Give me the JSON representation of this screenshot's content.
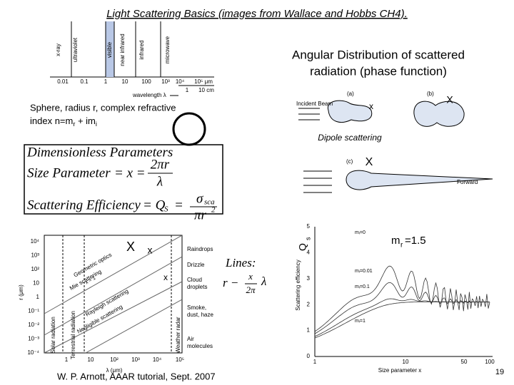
{
  "header": {
    "title": "Light Scattering Basics (images from Wallace and Hobbs CH4)."
  },
  "spectrum": {
    "bands": [
      "x-ray",
      "ultraviolet",
      "visible",
      "near infrared",
      "infrared",
      "microwave"
    ],
    "um_ticks": [
      "0.01",
      "0.1",
      "1",
      "10",
      "100",
      "10³",
      "10⁴",
      "10⁵ μm"
    ],
    "cm_ticks": [
      "1",
      "10 cm"
    ],
    "axis_label": "wavelength λ"
  },
  "phase": {
    "heading": [
      "Angular Distribution of scattered",
      "radiation (phase function)"
    ],
    "panel_a": "(a)",
    "panel_b": "(b)",
    "panel_c": "(c)",
    "incident": "Incident Beam",
    "forward": "Forward",
    "dipole": "Dipole scattering",
    "markers": [
      "x",
      "X",
      "X"
    ]
  },
  "sphere": {
    "line1": "Sphere, radius r, complex refractive",
    "prefix": "index n=m",
    "r": "r",
    "plus": " + im",
    "i": "i"
  },
  "equations": {
    "heading": "Dimensionless Parameters",
    "size_label": "Size Parameter",
    "size_eq": "= x =",
    "size_num": "2πr",
    "size_den": "λ",
    "eff_label": "Scattering Efficiency",
    "eff_eq": "= Q",
    "eff_sub": "S",
    "eff_eq2": "=",
    "eff_num": "σ",
    "eff_num_sub": "sca",
    "eff_den": "πr",
    "eff_den_sup": "2"
  },
  "lines_note": {
    "label": "Lines:",
    "lhs": "r −",
    "num": "x",
    "den": "2π",
    "rhs": "λ"
  },
  "size_chart": {
    "yticks": [
      "10⁴",
      "10³",
      "10²",
      "10",
      "1",
      "10⁻¹",
      "10⁻²",
      "10⁻³",
      "10⁻⁴"
    ],
    "xticks": [
      "1",
      "10",
      "10²",
      "10³",
      "10⁴",
      "10⁵"
    ],
    "ylabel": "r (μm)",
    "xlabel": "λ (μm)",
    "regimes": [
      "Geometric optics",
      "Mie scattering",
      "Rayleigh scattering",
      "Negligible scattering"
    ],
    "particles": [
      [
        "Raindrops"
      ],
      [
        "Drizzle"
      ],
      [
        "Cloud",
        "droplets"
      ],
      [
        "Smoke,",
        "dust, haze"
      ],
      [
        "Air",
        "molecules"
      ]
    ],
    "radiation": [
      "Solar radiation",
      "Terrestrial radiation",
      "Weather radar"
    ],
    "x_line": "x = 1",
    "markers": [
      "X",
      "x",
      "x"
    ]
  },
  "efficiency_chart": {
    "yticks": [
      "0",
      "1",
      "2",
      "3",
      "4",
      "5"
    ],
    "xticks": [
      "1",
      "10",
      "50",
      "100"
    ],
    "ylabel": "Scattering efficiency",
    "xlabel": "Size parameter x",
    "curves": [
      "mᵢ=0",
      "mᵢ=0.01",
      "mᵢ=0.1",
      "mᵢ=1"
    ],
    "axis_title": "Q",
    "axis_title_sub": "s",
    "mr": "m",
    "mr_sub": "r",
    "mr_value": "=1.5"
  },
  "footer": {
    "credit": "W. P. Arnott, AAAR tutorial, Sept. 2007",
    "page": "19"
  }
}
